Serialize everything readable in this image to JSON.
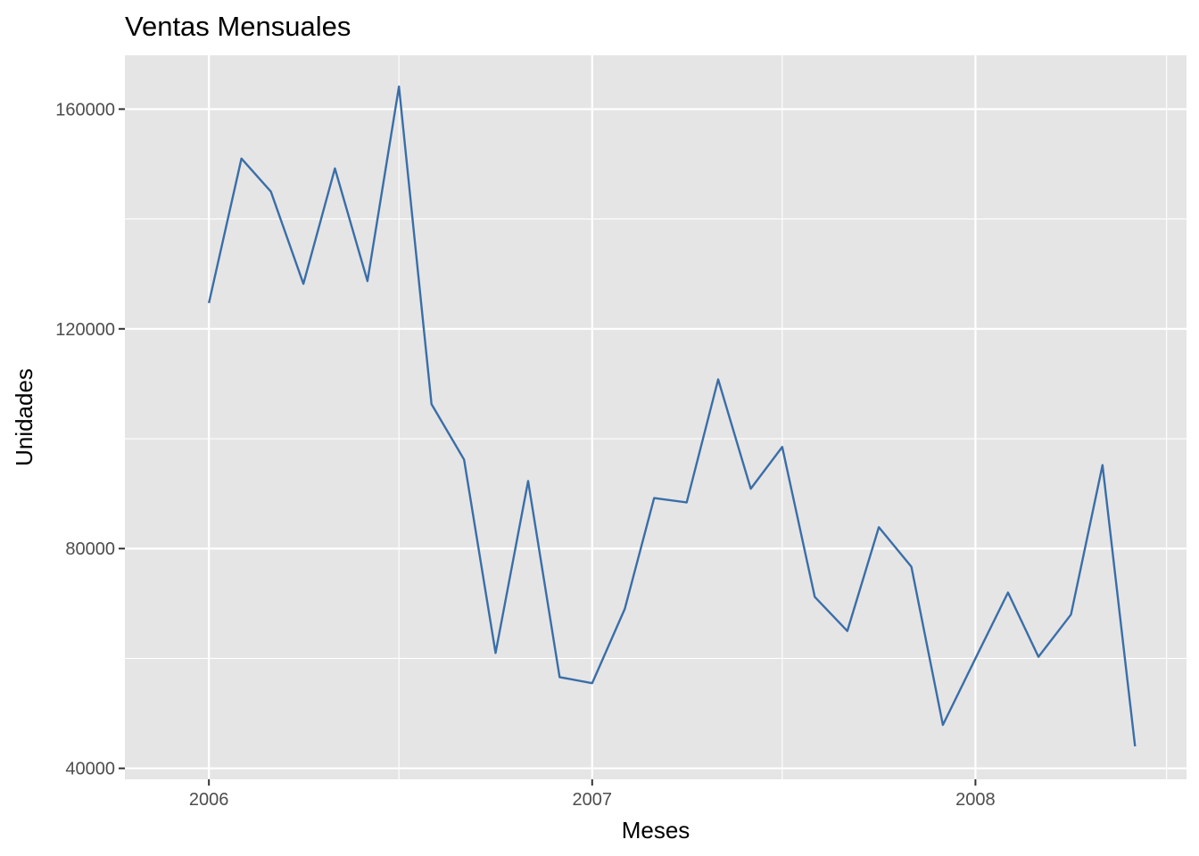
{
  "chart_data": {
    "type": "line",
    "title": "Ventas Mensuales",
    "xlabel": "Meses",
    "ylabel": "Unidades",
    "x_tick_labels": [
      "2006",
      "2007",
      "2008"
    ],
    "y_tick_labels": [
      "40000",
      "80000",
      "120000",
      "160000"
    ],
    "y_ticks": [
      40000,
      80000,
      120000,
      160000
    ],
    "ylim": [
      38000,
      169800
    ],
    "xlim": [
      "2005-10-13",
      "2008-07-20"
    ],
    "grid": true,
    "background": "#e5e5e5",
    "series": [
      {
        "color": "#3a6ea8",
        "x": [
          "2006-01",
          "2006-02",
          "2006-03",
          "2006-04",
          "2006-05",
          "2006-06",
          "2006-07",
          "2006-08",
          "2006-09",
          "2006-10",
          "2006-11",
          "2006-12",
          "2007-01",
          "2007-02",
          "2007-03",
          "2007-04",
          "2007-05",
          "2007-06",
          "2007-07",
          "2007-08",
          "2007-09",
          "2007-10",
          "2007-11",
          "2007-12",
          "2008-01",
          "2008-02",
          "2008-03",
          "2008-04",
          "2008-05",
          "2008-06"
        ],
        "values": [
          124700,
          151000,
          145000,
          128200,
          149200,
          128700,
          164100,
          106300,
          96200,
          61000,
          92300,
          56600,
          55500,
          69000,
          89200,
          88400,
          110800,
          90900,
          98500,
          71200,
          65000,
          83900,
          76700,
          47900,
          60000,
          72000,
          60300,
          68000,
          95200,
          44000
        ]
      }
    ]
  }
}
